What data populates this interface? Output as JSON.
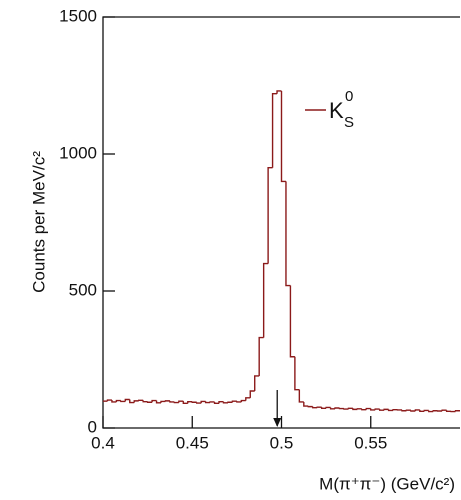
{
  "chart_data": {
    "type": "histogram",
    "y_label": "Counts per MeV/c²",
    "x_label": "M(π⁺π⁻) (GeV/c²)",
    "xlim": [
      0.4,
      0.6
    ],
    "ylim": [
      0,
      1500
    ],
    "xticks": [
      0.4,
      0.45,
      0.5,
      0.55
    ],
    "yticks": [
      0,
      500,
      1000,
      1500
    ],
    "arrow_x": 0.4976,
    "bins": [
      0.4,
      0.4025,
      0.405,
      0.4075,
      0.41,
      0.4125,
      0.415,
      0.4175,
      0.42,
      0.4225,
      0.425,
      0.4275,
      0.43,
      0.4325,
      0.435,
      0.4375,
      0.44,
      0.4425,
      0.445,
      0.4475,
      0.45,
      0.4525,
      0.455,
      0.4575,
      0.46,
      0.4625,
      0.465,
      0.4675,
      0.47,
      0.4725,
      0.475,
      0.4775,
      0.48,
      0.4825,
      0.485,
      0.4875,
      0.49,
      0.4925,
      0.495,
      0.4975,
      0.5,
      0.5025,
      0.505,
      0.5075,
      0.51,
      0.5125,
      0.515,
      0.5175,
      0.52,
      0.5225,
      0.525,
      0.5275,
      0.53,
      0.5325,
      0.535,
      0.5375,
      0.54,
      0.5425,
      0.545,
      0.5475,
      0.55,
      0.5525,
      0.555,
      0.5575,
      0.56,
      0.5625,
      0.565,
      0.5675,
      0.57,
      0.5725,
      0.575,
      0.5775,
      0.58,
      0.5825,
      0.585,
      0.5875,
      0.59,
      0.5925,
      0.595,
      0.5975,
      0.6
    ],
    "series": [
      {
        "name": "K",
        "name_sup": "0",
        "name_sub": "S",
        "color": "#8b1a1a",
        "values": [
          98,
          102,
          95,
          100,
          97,
          104,
          93,
          99,
          101,
          96,
          94,
          100,
          92,
          97,
          99,
          95,
          93,
          98,
          90,
          96,
          94,
          91,
          97,
          93,
          95,
          90,
          96,
          92,
          94,
          98,
          95,
          100,
          110,
          135,
          190,
          330,
          600,
          950,
          1220,
          1230,
          900,
          520,
          260,
          140,
          95,
          80,
          78,
          74,
          76,
          72,
          75,
          70,
          73,
          71,
          69,
          72,
          68,
          70,
          67,
          71,
          66,
          69,
          65,
          68,
          64,
          67,
          66,
          63,
          65,
          62,
          66,
          61,
          64,
          60,
          63,
          62,
          65,
          61,
          60,
          63
        ]
      }
    ]
  }
}
